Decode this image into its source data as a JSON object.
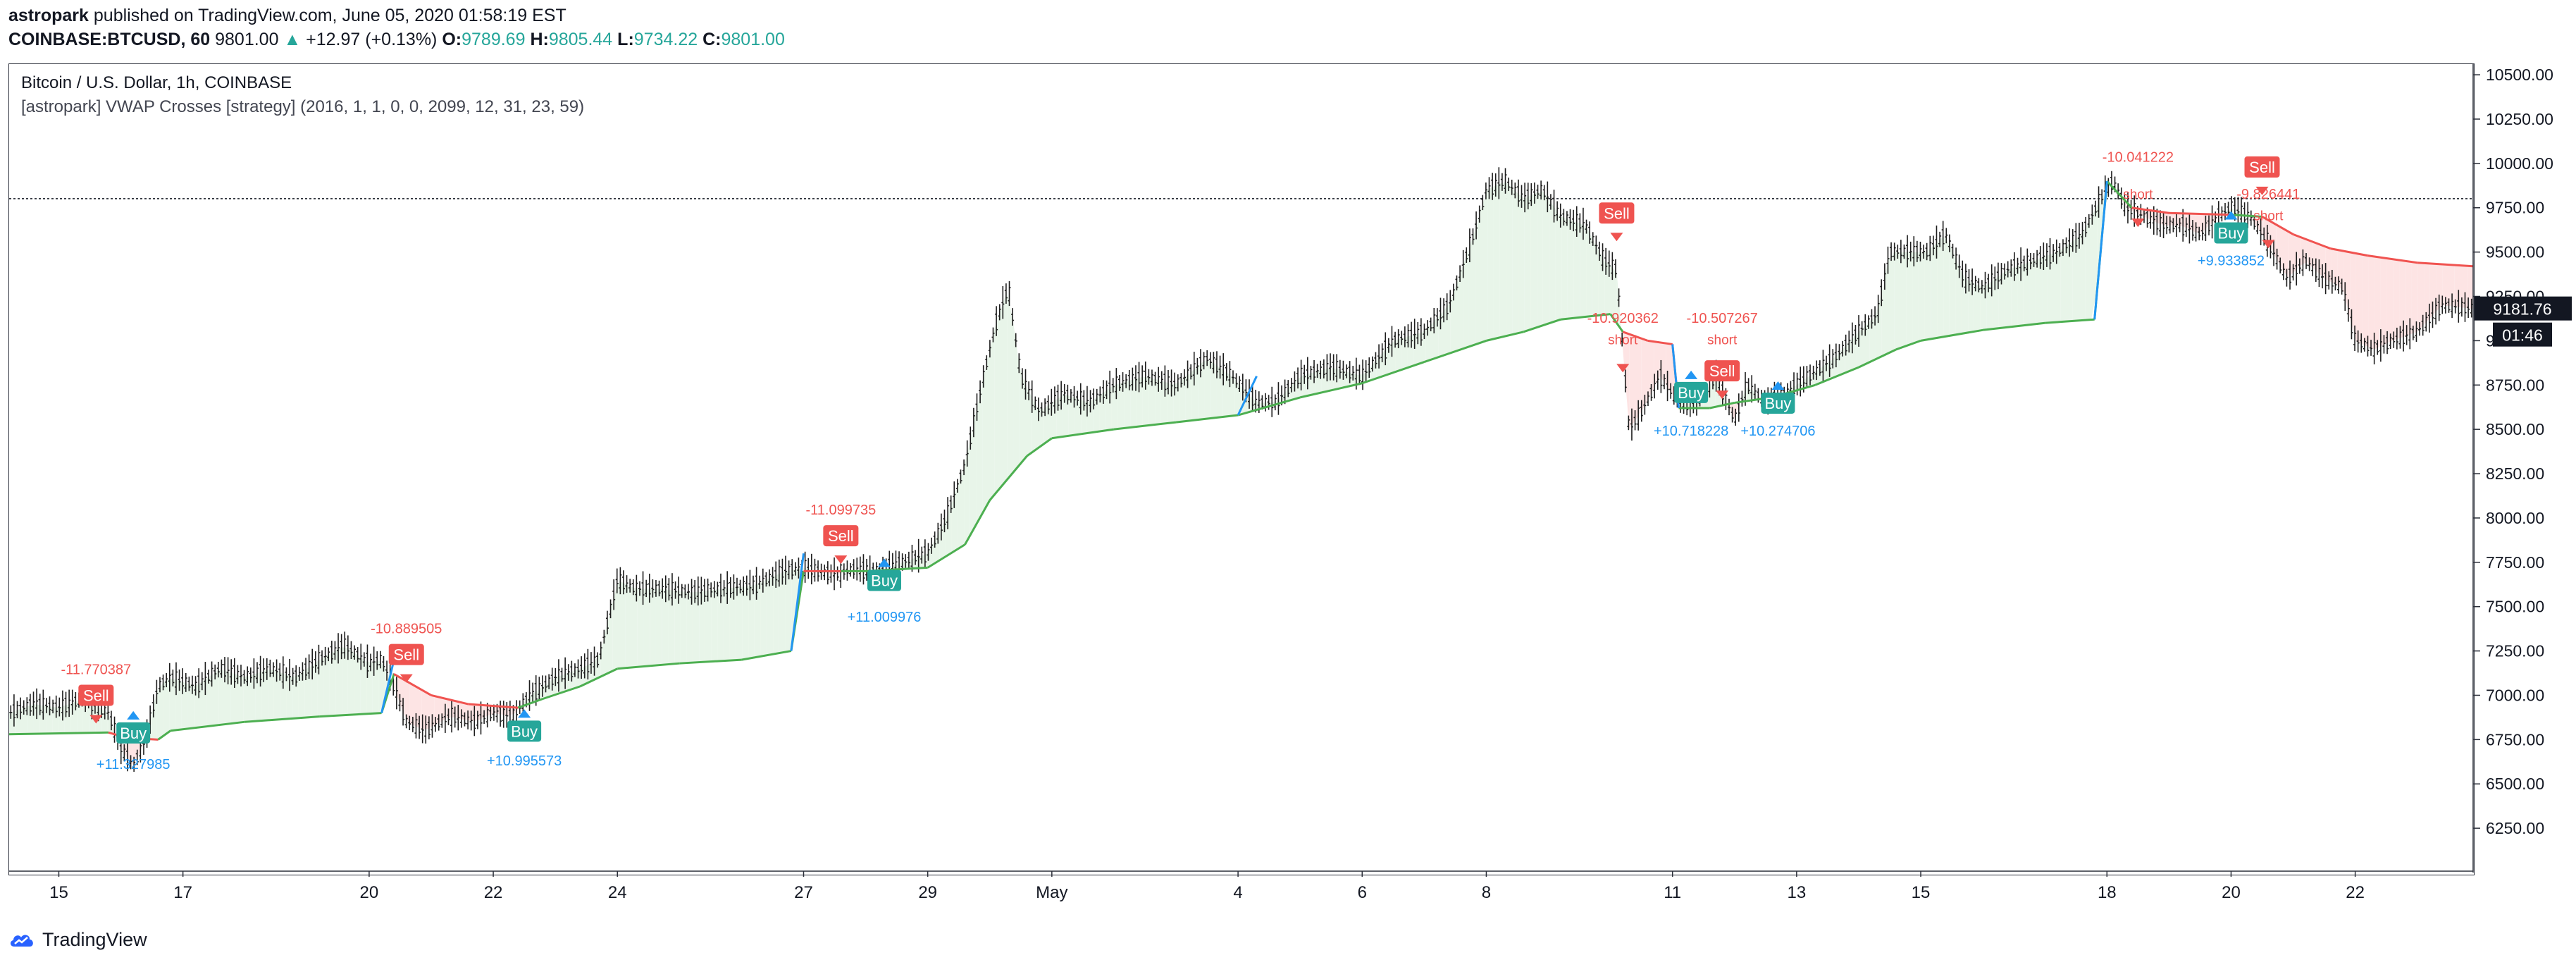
{
  "header": {
    "user": "astropark",
    "published": "published on TradingView.com, June 05, 2020 01:58:19 EST",
    "symbol": "COINBASE:BTCUSD, 60",
    "last": "9801.00",
    "change": "+12.97 (+0.13%)",
    "o_label": "O:",
    "o_val": "9789.69",
    "h_label": "H:",
    "h_val": "9805.44",
    "l_label": "L:",
    "l_val": "9734.22",
    "c_label": "C:",
    "c_val": "9801.00"
  },
  "chart_title": "Bitcoin / U.S. Dollar, 1h, COINBASE",
  "strategy_title": "[astropark] VWAP Crosses [strategy] (2016, 1, 1, 0, 0, 2099, 12, 31, 23, 59)",
  "footer": {
    "brand": "TradingView"
  },
  "colors": {
    "up": "#26a69a",
    "buy": "#26a69a",
    "sell": "#ef5350",
    "vwap_green": "#4caf50",
    "vwap_red": "#f05350",
    "blue": "#2196f3",
    "fill_green": "#e8f5e9",
    "fill_red": "#fde4e4"
  },
  "chart_data": {
    "type": "line",
    "series_note": "BTCUSD hourly close (approx.) with VWAP line",
    "ylim": [
      6000,
      10560
    ],
    "y_ticks": [
      "10500.00",
      "10250.00",
      "10000.00",
      "9750.00",
      "9500.00",
      "9250.00",
      "9000.00",
      "8750.00",
      "8500.00",
      "8250.00",
      "8000.00",
      "7750.00",
      "7500.00",
      "7250.00",
      "7000.00",
      "6750.00",
      "6500.00",
      "6250.00"
    ],
    "y_tick_values": [
      10500,
      10250,
      10000,
      9750,
      9500,
      9250,
      9000,
      8750,
      8500,
      8250,
      8000,
      7750,
      7500,
      7250,
      7000,
      6750,
      6500,
      6250
    ],
    "x_ticks": [
      "15",
      "17",
      "20",
      "22",
      "24",
      "27",
      "29",
      "May",
      "4",
      "6",
      "8",
      "11",
      "13",
      "15",
      "18",
      "20",
      "22"
    ],
    "x_tick_days": [
      0,
      2,
      5,
      7,
      9,
      12,
      14,
      16,
      19,
      21,
      23,
      26,
      28,
      30,
      33,
      35,
      37
    ],
    "xlim_days": [
      -0.8,
      38.9
    ],
    "price": [
      [
        -0.8,
        6900
      ],
      [
        -0.4,
        6950
      ],
      [
        0,
        6930
      ],
      [
        0.4,
        6980
      ],
      [
        0.8,
        6900
      ],
      [
        1.0,
        6700
      ],
      [
        1.2,
        6600
      ],
      [
        1.4,
        6750
      ],
      [
        1.6,
        7050
      ],
      [
        1.8,
        7100
      ],
      [
        2.2,
        7050
      ],
      [
        2.6,
        7150
      ],
      [
        3,
        7100
      ],
      [
        3.4,
        7150
      ],
      [
        3.8,
        7100
      ],
      [
        4.2,
        7200
      ],
      [
        4.6,
        7280
      ],
      [
        5,
        7180
      ],
      [
        5.2,
        7200
      ],
      [
        5.4,
        7050
      ],
      [
        5.6,
        6850
      ],
      [
        5.9,
        6800
      ],
      [
        6.3,
        6880
      ],
      [
        6.7,
        6850
      ],
      [
        7.0,
        6900
      ],
      [
        7.3,
        6880
      ],
      [
        7.6,
        7000
      ],
      [
        8.0,
        7100
      ],
      [
        8.4,
        7150
      ],
      [
        8.7,
        7200
      ],
      [
        9.0,
        7650
      ],
      [
        9.3,
        7600
      ],
      [
        9.7,
        7600
      ],
      [
        10.2,
        7580
      ],
      [
        10.7,
        7600
      ],
      [
        11.2,
        7620
      ],
      [
        11.7,
        7700
      ],
      [
        12.0,
        7720
      ],
      [
        12.2,
        7700
      ],
      [
        12.5,
        7680
      ],
      [
        12.8,
        7710
      ],
      [
        13.2,
        7700
      ],
      [
        13.6,
        7750
      ],
      [
        14.0,
        7800
      ],
      [
        14.3,
        8000
      ],
      [
        14.6,
        8300
      ],
      [
        14.9,
        8800
      ],
      [
        15.1,
        9100
      ],
      [
        15.3,
        9300
      ],
      [
        15.5,
        8800
      ],
      [
        15.8,
        8600
      ],
      [
        16.2,
        8700
      ],
      [
        16.6,
        8650
      ],
      [
        17,
        8750
      ],
      [
        17.5,
        8800
      ],
      [
        18,
        8750
      ],
      [
        18.5,
        8900
      ],
      [
        18.9,
        8800
      ],
      [
        19.3,
        8650
      ],
      [
        19.6,
        8650
      ],
      [
        20,
        8800
      ],
      [
        20.5,
        8850
      ],
      [
        21,
        8800
      ],
      [
        21.5,
        9000
      ],
      [
        22,
        9050
      ],
      [
        22.4,
        9200
      ],
      [
        22.8,
        9600
      ],
      [
        23.0,
        9850
      ],
      [
        23.3,
        9900
      ],
      [
        23.6,
        9800
      ],
      [
        23.9,
        9850
      ],
      [
        24.2,
        9700
      ],
      [
        24.6,
        9650
      ],
      [
        24.9,
        9450
      ],
      [
        25.1,
        9400
      ],
      [
        25.3,
        8500
      ],
      [
        25.5,
        8600
      ],
      [
        25.8,
        8800
      ],
      [
        26.1,
        8650
      ],
      [
        26.4,
        8650
      ],
      [
        26.7,
        8800
      ],
      [
        27.0,
        8550
      ],
      [
        27.2,
        8750
      ],
      [
        27.5,
        8650
      ],
      [
        27.8,
        8700
      ],
      [
        28.2,
        8800
      ],
      [
        28.6,
        8900
      ],
      [
        29.0,
        9050
      ],
      [
        29.3,
        9150
      ],
      [
        29.5,
        9500
      ],
      [
        29.8,
        9500
      ],
      [
        30.1,
        9500
      ],
      [
        30.4,
        9600
      ],
      [
        30.7,
        9350
      ],
      [
        31.0,
        9300
      ],
      [
        31.4,
        9400
      ],
      [
        31.8,
        9450
      ],
      [
        32.2,
        9500
      ],
      [
        32.6,
        9600
      ],
      [
        32.9,
        9800
      ],
      [
        33.1,
        9900
      ],
      [
        33.3,
        9750
      ],
      [
        33.6,
        9700
      ],
      [
        33.9,
        9650
      ],
      [
        34.2,
        9650
      ],
      [
        34.5,
        9600
      ],
      [
        34.8,
        9700
      ],
      [
        35.0,
        9750
      ],
      [
        35.3,
        9700
      ],
      [
        35.6,
        9550
      ],
      [
        35.9,
        9350
      ],
      [
        36.2,
        9450
      ],
      [
        36.5,
        9350
      ],
      [
        36.8,
        9300
      ],
      [
        37.0,
        9000
      ],
      [
        37.3,
        8950
      ],
      [
        37.6,
        9000
      ],
      [
        38.0,
        9050
      ],
      [
        38.4,
        9200
      ],
      [
        38.9,
        9180
      ]
    ],
    "vwap": [
      [
        -0.8,
        6780
      ],
      [
        0.8,
        6790
      ],
      [
        1.1,
        6760
      ],
      [
        1.6,
        6750
      ],
      [
        1.8,
        6800
      ],
      [
        3,
        6850
      ],
      [
        4.2,
        6880
      ],
      [
        5.2,
        6900
      ],
      [
        5.4,
        7120
      ],
      [
        6.0,
        7000
      ],
      [
        6.6,
        6950
      ],
      [
        7.4,
        6930
      ],
      [
        7.8,
        6980
      ],
      [
        8.4,
        7050
      ],
      [
        9.0,
        7150
      ],
      [
        10,
        7180
      ],
      [
        11,
        7200
      ],
      [
        11.8,
        7250
      ],
      [
        12.0,
        7700
      ],
      [
        12.6,
        7700
      ],
      [
        13,
        7700
      ],
      [
        14,
        7720
      ],
      [
        14.6,
        7850
      ],
      [
        15,
        8100
      ],
      [
        15.6,
        8350
      ],
      [
        16,
        8450
      ],
      [
        17,
        8500
      ],
      [
        18,
        8540
      ],
      [
        19,
        8580
      ],
      [
        20,
        8680
      ],
      [
        21,
        8760
      ],
      [
        22,
        8880
      ],
      [
        23,
        9000
      ],
      [
        23.6,
        9050
      ],
      [
        24.2,
        9120
      ],
      [
        25,
        9150
      ],
      [
        25.2,
        9050
      ],
      [
        25.6,
        9000
      ],
      [
        26.0,
        8980
      ],
      [
        26.1,
        8620
      ],
      [
        26.6,
        8620
      ],
      [
        27,
        8650
      ],
      [
        27.6,
        8680
      ],
      [
        28.3,
        8750
      ],
      [
        29,
        8850
      ],
      [
        29.6,
        8950
      ],
      [
        30,
        9000
      ],
      [
        31,
        9060
      ],
      [
        32,
        9100
      ],
      [
        32.8,
        9120
      ],
      [
        33.0,
        9900
      ],
      [
        33.4,
        9750
      ],
      [
        34,
        9720
      ],
      [
        35,
        9710
      ],
      [
        35.5,
        9700
      ],
      [
        36,
        9600
      ],
      [
        36.6,
        9520
      ],
      [
        37.2,
        9480
      ],
      [
        38,
        9440
      ],
      [
        38.9,
        9420
      ]
    ],
    "crossing_lines": [
      [
        [
          5.2,
          6900
        ],
        [
          5.4,
          7200
        ]
      ],
      [
        [
          11.8,
          7250
        ],
        [
          12.0,
          7800
        ]
      ],
      [
        [
          19.0,
          8580
        ],
        [
          19.3,
          8800
        ]
      ],
      [
        [
          26.0,
          8980
        ],
        [
          26.1,
          8620
        ]
      ],
      [
        [
          32.8,
          9120
        ],
        [
          33.0,
          9900
        ]
      ]
    ],
    "last_price_line": 9801,
    "signals": [
      {
        "type": "sell",
        "day": 0.6,
        "price": 7000,
        "label": "Sell",
        "pnl": "-11.770387",
        "pnl_price": 7120
      },
      {
        "type": "buy",
        "day": 1.2,
        "price": 6760,
        "label": "Buy",
        "pnl": "+11.327985",
        "pnl_price": 6640
      },
      {
        "type": "sell",
        "day": 5.6,
        "price": 7230,
        "label": "Sell",
        "pnl": "-10.889505",
        "pnl_price": 7350
      },
      {
        "type": "buy",
        "day": 7.5,
        "price": 6770,
        "label": "Buy",
        "pnl": "+10.995573",
        "pnl_price": 6660
      },
      {
        "type": "sell",
        "day": 12.6,
        "price": 7900,
        "label": "Sell",
        "pnl": "-11.099735",
        "pnl_price": 8020
      },
      {
        "type": "buy",
        "day": 13.3,
        "price": 7620,
        "label": "Buy",
        "pnl": "+11.009976",
        "pnl_price": 7470
      },
      {
        "type": "sell",
        "day": 25.1,
        "price": 9720,
        "label": "Sell",
        "pnl": "",
        "pnl_price": 0
      },
      {
        "type": "short",
        "day": 25.2,
        "price": 8980,
        "label": "short",
        "pnl": "-10.920362",
        "pnl_price": 9100
      },
      {
        "type": "short",
        "day": 26.8,
        "price": 8980,
        "label": "short",
        "pnl": "-10.507267",
        "pnl_price": 9100
      },
      {
        "type": "sell",
        "day": 26.8,
        "price": 8830,
        "label": "Sell",
        "pnl": "",
        "pnl_price": 0
      },
      {
        "type": "buy",
        "day": 26.3,
        "price": 8680,
        "label": "Buy",
        "pnl": "+10.718228",
        "pnl_price": 8520
      },
      {
        "type": "buy",
        "day": 27.7,
        "price": 8620,
        "label": "Buy",
        "pnl": "+10.274706",
        "pnl_price": 8520
      },
      {
        "type": "sell",
        "day": 33.5,
        "price": 9800,
        "label": "short",
        "pnl": "-10.041222",
        "pnl_price": 10010
      },
      {
        "type": "sell",
        "day": 35.5,
        "price": 9980,
        "label": "Sell",
        "pnl": "",
        "pnl_price": 0
      },
      {
        "type": "short",
        "day": 35.6,
        "price": 9680,
        "label": "short",
        "pnl": "-9.826441",
        "pnl_price": 9800
      },
      {
        "type": "buy",
        "day": 35.0,
        "price": 9580,
        "label": "Buy",
        "pnl": "+9.933852",
        "pnl_price": 9480
      }
    ],
    "current_price_label": "9181.76",
    "countdown_label": "01:46"
  }
}
